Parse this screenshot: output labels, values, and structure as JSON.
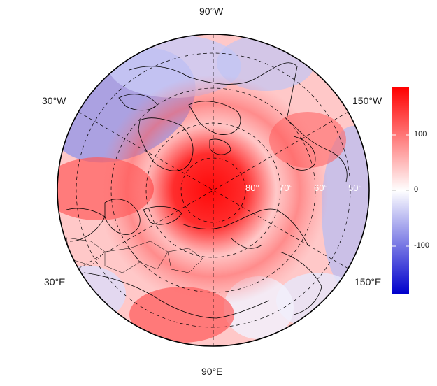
{
  "map": {
    "projection": "north polar stereographic",
    "longitude_labels": {
      "top": "90°W",
      "upper_left": "30°W",
      "upper_right": "150°W",
      "lower_left": "30°E",
      "lower_right": "150°E",
      "bottom": "90°E"
    },
    "latitude_labels": [
      "80°",
      "70°",
      "60°",
      "50°"
    ],
    "field_description": "anomaly field, strong positive centered near the pole",
    "colorbar": {
      "ticks": [
        "100",
        "0",
        "-100"
      ],
      "range": [
        -180,
        180
      ],
      "colors": {
        "low": "#0000cc",
        "mid": "#ffffff",
        "high": "#ff0000"
      }
    }
  }
}
